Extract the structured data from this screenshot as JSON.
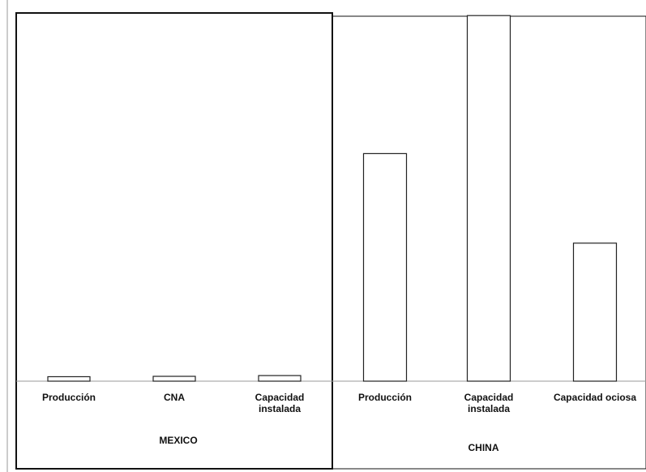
{
  "chart_data": {
    "type": "bar",
    "title": "",
    "xlabel": "",
    "ylabel": "",
    "grid": false,
    "ylim": [
      0,
      100
    ],
    "groups": [
      {
        "name": "MEXICO",
        "categories": [
          [
            "Producción"
          ],
          [
            "CNA"
          ],
          [
            "Capacidad",
            "instalada"
          ]
        ],
        "values": [
          1.2,
          1.3,
          1.5
        ]
      },
      {
        "name": "CHINA",
        "categories": [
          [
            "Producción"
          ],
          [
            "Capacidad",
            "instalada"
          ],
          [
            "Capacidad ociosa"
          ]
        ],
        "values": [
          61,
          98,
          37
        ]
      }
    ],
    "colors": {
      "bar_fill": "#ffffff",
      "bar_stroke": "#222222",
      "frame": "#111111",
      "axis": "#999999"
    }
  }
}
